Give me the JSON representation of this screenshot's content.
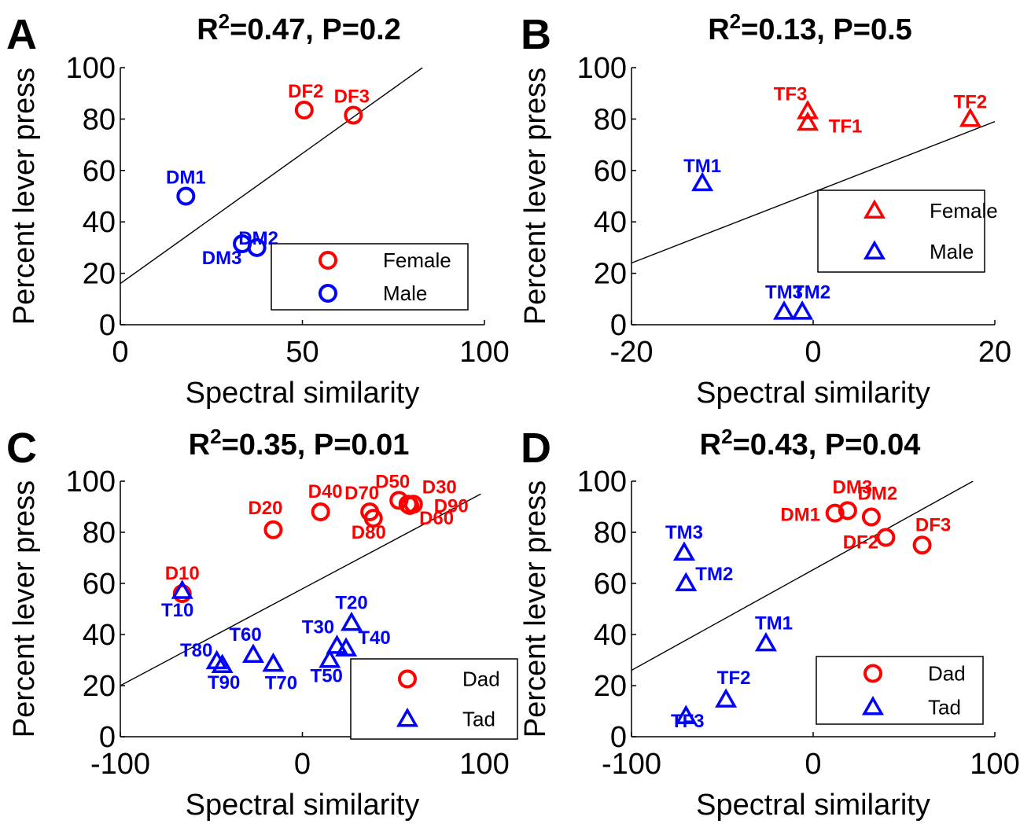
{
  "chart_data": [
    {
      "panel_letter": "A",
      "type": "scatter",
      "title_prefix": "R",
      "title_sup": "2",
      "title_suffix": "=0.47, P=0.2",
      "xlabel": "Spectral similarity",
      "ylabel": "Percent lever press",
      "xlim": [
        0,
        100
      ],
      "ylim": [
        0,
        100
      ],
      "xticks": [
        0,
        50,
        100
      ],
      "yticks": [
        0,
        20,
        40,
        60,
        80,
        100
      ],
      "xtick_labels": [
        "0",
        "50",
        "100"
      ],
      "ytick_labels": [
        "0",
        "20",
        "40",
        "60",
        "80",
        "100"
      ],
      "fit_line": [
        [
          -2,
          14
        ],
        [
          83,
          100
        ]
      ],
      "legend": {
        "placement": "bottom-right",
        "entries": [
          {
            "label": "Female",
            "marker": "circle",
            "color": "#ff0000"
          },
          {
            "label": "Male",
            "marker": "circle",
            "color": "#0000ff"
          }
        ]
      },
      "points": [
        {
          "x": 50.5,
          "y": 83.5,
          "label": "DF2",
          "group": "Female",
          "marker": "circle",
          "color": "#ff0000"
        },
        {
          "x": 64,
          "y": 81.5,
          "label": "DF3",
          "group": "Female",
          "marker": "circle",
          "color": "#ff0000"
        },
        {
          "x": 18,
          "y": 50,
          "label": "DM1",
          "group": "Male",
          "marker": "circle",
          "color": "#0000ff"
        },
        {
          "x": 37.5,
          "y": 30,
          "label": "DM2",
          "group": "Male",
          "marker": "circle",
          "color": "#0000ff"
        },
        {
          "x": 33.5,
          "y": 31.5,
          "label": "DM3",
          "group": "Male",
          "marker": "circle",
          "color": "#0000ff"
        }
      ]
    },
    {
      "panel_letter": "B",
      "type": "scatter",
      "title_prefix": "R",
      "title_sup": "2",
      "title_suffix": "=0.13, P=0.5",
      "xlabel": "Spectral similarity",
      "ylabel": "Percent lever press",
      "xlim": [
        -20,
        20
      ],
      "ylim": [
        0,
        100
      ],
      "xticks": [
        -20,
        0,
        20
      ],
      "yticks": [
        0,
        20,
        40,
        60,
        80,
        100
      ],
      "xtick_labels": [
        "-20",
        "0",
        "20"
      ],
      "ytick_labels": [
        "0",
        "20",
        "40",
        "60",
        "80",
        "100"
      ],
      "fit_line": [
        [
          -20,
          24
        ],
        [
          20,
          79
        ]
      ],
      "legend": {
        "placement": "middle-right",
        "entries": [
          {
            "label": "Female",
            "marker": "triangle",
            "color": "#ff0000"
          },
          {
            "label": "Male",
            "marker": "triangle",
            "color": "#0000ff"
          }
        ]
      },
      "points": [
        {
          "x": -0.6,
          "y": 83,
          "label": "TF3",
          "group": "Female",
          "marker": "triangle",
          "color": "#ff0000"
        },
        {
          "x": -0.6,
          "y": 78.5,
          "label": "TF1",
          "group": "Female",
          "marker": "triangle",
          "color": "#ff0000"
        },
        {
          "x": 17.3,
          "y": 80,
          "label": "TF2",
          "group": "Female",
          "marker": "triangle",
          "color": "#ff0000"
        },
        {
          "x": -12.2,
          "y": 55,
          "label": "TM1",
          "group": "Male",
          "marker": "triangle",
          "color": "#0000ff"
        },
        {
          "x": -3.2,
          "y": 5,
          "label": "TM3",
          "group": "Male",
          "marker": "triangle",
          "color": "#0000ff"
        },
        {
          "x": -1.2,
          "y": 5,
          "label": "TM2",
          "group": "Male",
          "marker": "triangle",
          "color": "#0000ff"
        }
      ]
    },
    {
      "panel_letter": "C",
      "type": "scatter",
      "title_prefix": "R",
      "title_sup": "2",
      "title_suffix": "=0.35, P=0.01",
      "xlabel": "Spectral similarity",
      "ylabel": "Percent lever press",
      "xlim": [
        -100,
        100
      ],
      "ylim": [
        0,
        100
      ],
      "xticks": [
        -100,
        0,
        100
      ],
      "yticks": [
        0,
        20,
        40,
        60,
        80,
        100
      ],
      "xtick_labels": [
        "-100",
        "0",
        "100"
      ],
      "ytick_labels": [
        "0",
        "20",
        "40",
        "60",
        "80",
        "100"
      ],
      "fit_line": [
        [
          -100,
          20
        ],
        [
          98,
          95
        ]
      ],
      "legend": {
        "placement": "bottom-right",
        "entries": [
          {
            "label": "Dad",
            "marker": "circle",
            "color": "#ff0000"
          },
          {
            "label": "Tad",
            "marker": "triangle",
            "color": "#0000ff"
          }
        ]
      },
      "points": [
        {
          "x": -66,
          "y": 56,
          "label": "D10",
          "group": "Dad",
          "marker": "circle",
          "color": "#ff0000"
        },
        {
          "x": -16,
          "y": 81,
          "label": "D20",
          "group": "Dad",
          "marker": "circle",
          "color": "#ff0000"
        },
        {
          "x": 10,
          "y": 88,
          "label": "D40",
          "group": "Dad",
          "marker": "circle",
          "color": "#ff0000"
        },
        {
          "x": 37,
          "y": 88,
          "label": "D70",
          "group": "Dad",
          "marker": "circle",
          "color": "#ff0000"
        },
        {
          "x": 39,
          "y": 85.5,
          "label": "D80",
          "group": "Dad",
          "marker": "circle",
          "color": "#ff0000"
        },
        {
          "x": 53,
          "y": 92.5,
          "label": "D50",
          "group": "Dad",
          "marker": "circle",
          "color": "#ff0000"
        },
        {
          "x": 58,
          "y": 91,
          "label": "D30",
          "group": "Dad",
          "marker": "circle",
          "color": "#ff0000"
        },
        {
          "x": 59,
          "y": 90.5,
          "label": "D60",
          "group": "Dad",
          "marker": "circle",
          "color": "#ff0000"
        },
        {
          "x": 61,
          "y": 91,
          "label": "D90",
          "group": "Dad",
          "marker": "circle",
          "color": "#ff0000"
        },
        {
          "x": -66,
          "y": 57,
          "label": "T10",
          "group": "Tad",
          "marker": "triangle",
          "color": "#0000ff"
        },
        {
          "x": 27,
          "y": 44.5,
          "label": "T20",
          "group": "Tad",
          "marker": "triangle",
          "color": "#0000ff"
        },
        {
          "x": 19,
          "y": 35.5,
          "label": "T30",
          "group": "Tad",
          "marker": "triangle",
          "color": "#0000ff"
        },
        {
          "x": 24,
          "y": 34.5,
          "label": "T40",
          "group": "Tad",
          "marker": "triangle",
          "color": "#0000ff"
        },
        {
          "x": 15,
          "y": 30,
          "label": "T50",
          "group": "Tad",
          "marker": "triangle",
          "color": "#0000ff"
        },
        {
          "x": -27,
          "y": 32,
          "label": "T60",
          "group": "Tad",
          "marker": "triangle",
          "color": "#0000ff"
        },
        {
          "x": -16,
          "y": 28.5,
          "label": "T70",
          "group": "Tad",
          "marker": "triangle",
          "color": "#0000ff"
        },
        {
          "x": -47,
          "y": 29.5,
          "label": "T80",
          "group": "Tad",
          "marker": "triangle",
          "color": "#0000ff"
        },
        {
          "x": -44,
          "y": 28,
          "label": "T90",
          "group": "Tad",
          "marker": "triangle",
          "color": "#0000ff"
        }
      ]
    },
    {
      "panel_letter": "D",
      "type": "scatter",
      "title_prefix": "R",
      "title_sup": "2",
      "title_suffix": "=0.43, P=0.04",
      "xlabel": "Spectral similarity",
      "ylabel": "Percent lever press",
      "xlim": [
        -100,
        100
      ],
      "ylim": [
        0,
        100
      ],
      "xticks": [
        -100,
        0,
        100
      ],
      "yticks": [
        0,
        20,
        40,
        60,
        80,
        100
      ],
      "xtick_labels": [
        "-100",
        "0",
        "100"
      ],
      "ytick_labels": [
        "0",
        "20",
        "40",
        "60",
        "80",
        "100"
      ],
      "fit_line": [
        [
          -100,
          26
        ],
        [
          88,
          100
        ]
      ],
      "legend": {
        "placement": "bottom-right",
        "entries": [
          {
            "label": "Dad",
            "marker": "circle",
            "color": "#ff0000"
          },
          {
            "label": "Tad",
            "marker": "triangle",
            "color": "#0000ff"
          }
        ]
      },
      "points": [
        {
          "x": 12,
          "y": 87.5,
          "label": "DM1",
          "group": "Dad",
          "marker": "circle",
          "color": "#ff0000"
        },
        {
          "x": 19,
          "y": 88.5,
          "label": "DM3",
          "group": "Dad",
          "marker": "circle",
          "color": "#ff0000"
        },
        {
          "x": 32,
          "y": 86,
          "label": "DM2",
          "group": "Dad",
          "marker": "circle",
          "color": "#ff0000"
        },
        {
          "x": 40,
          "y": 78,
          "label": "DF2",
          "group": "Dad",
          "marker": "circle",
          "color": "#ff0000"
        },
        {
          "x": 60,
          "y": 75,
          "label": "DF3",
          "group": "Dad",
          "marker": "circle",
          "color": "#ff0000"
        },
        {
          "x": -71,
          "y": 72,
          "label": "TM3",
          "group": "Tad",
          "marker": "triangle",
          "color": "#0000ff"
        },
        {
          "x": -70,
          "y": 60,
          "label": "TM2",
          "group": "Tad",
          "marker": "triangle",
          "color": "#0000ff"
        },
        {
          "x": -26,
          "y": 36.5,
          "label": "TM1",
          "group": "Tad",
          "marker": "triangle",
          "color": "#0000ff"
        },
        {
          "x": -48,
          "y": 14.5,
          "label": "TF2",
          "group": "Tad",
          "marker": "triangle",
          "color": "#0000ff"
        },
        {
          "x": -70,
          "y": 8,
          "label": "TF3",
          "group": "Tad",
          "marker": "triangle",
          "color": "#0000ff"
        }
      ]
    }
  ]
}
